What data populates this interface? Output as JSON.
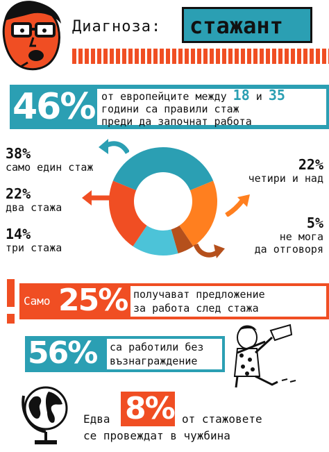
{
  "header": {
    "prefix": "Диагноза:",
    "title": "стажант"
  },
  "intro": {
    "percent": "46%",
    "line1_text": "от европейците между",
    "age_from": "18",
    "conj": "и",
    "age_to": "35",
    "line2": "години са правили стаж",
    "line3": "преди да започнат работа"
  },
  "internship_counts": {
    "items": [
      {
        "pct": "38%",
        "label": "само един стаж"
      },
      {
        "pct": "22%",
        "label": "два стажа"
      },
      {
        "pct": "14%",
        "label": "три стажа"
      },
      {
        "pct": "22%",
        "label": "четири и над"
      },
      {
        "pct": "5%",
        "label_line1": "не мога",
        "label_line2": "да отговоря"
      }
    ],
    "donut_values": [
      38,
      22,
      5,
      14,
      22
    ],
    "donut_colors": [
      "#2b9fb3",
      "#ff7f1f",
      "#b5501c",
      "#4cc3d8",
      "#f04e23"
    ]
  },
  "offer": {
    "exclamation": "!",
    "prefix": "Само",
    "percent": "25%",
    "line1": "получават предложение",
    "line2": "за работа след стажа"
  },
  "unpaid": {
    "percent": "56%",
    "line1": "са работили без",
    "line2": "възнаграждение"
  },
  "abroad": {
    "prefix": "Едва",
    "percent": "8%",
    "line1": "от стажовете",
    "line2": "се провеждат в чужбина"
  },
  "colors": {
    "teal": "#2b9fb3",
    "orange": "#f04e23",
    "lightorange": "#ff7f1f"
  },
  "icons": [
    "glasses-guy-icon",
    "arrow-icon",
    "child-with-paper-icon",
    "globe-icon"
  ]
}
